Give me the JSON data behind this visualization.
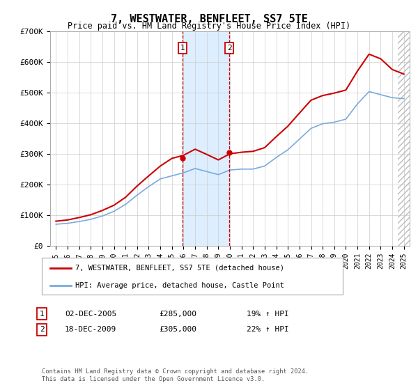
{
  "title": "7, WESTWATER, BENFLEET, SS7 5TE",
  "subtitle": "Price paid vs. HM Land Registry's House Price Index (HPI)",
  "legend_line1": "7, WESTWATER, BENFLEET, SS7 5TE (detached house)",
  "legend_line2": "HPI: Average price, detached house, Castle Point",
  "annotation1_date": "02-DEC-2005",
  "annotation1_price": "£285,000",
  "annotation1_hpi": "19% ↑ HPI",
  "annotation1_year": 2005.92,
  "annotation1_value": 285000,
  "annotation2_date": "18-DEC-2009",
  "annotation2_price": "£305,000",
  "annotation2_hpi": "22% ↑ HPI",
  "annotation2_year": 2009.96,
  "annotation2_value": 305000,
  "footer": "Contains HM Land Registry data © Crown copyright and database right 2024.\nThis data is licensed under the Open Government Licence v3.0.",
  "red_color": "#cc0000",
  "blue_color": "#7aaadd",
  "shade_color": "#ddeeff",
  "ylim": [
    0,
    700000
  ],
  "xlim_start": 1994.5,
  "xlim_end": 2025.5,
  "years_hpi": [
    1995,
    1996,
    1997,
    1998,
    1999,
    2000,
    2001,
    2002,
    2003,
    2004,
    2005,
    2006,
    2007,
    2008,
    2009,
    2010,
    2011,
    2012,
    2013,
    2014,
    2015,
    2016,
    2017,
    2018,
    2019,
    2020,
    2021,
    2022,
    2023,
    2024,
    2025
  ],
  "hpi_values": [
    70000,
    73000,
    79000,
    86000,
    97000,
    112000,
    135000,
    165000,
    193000,
    218000,
    228000,
    238000,
    252000,
    242000,
    232000,
    247000,
    250000,
    250000,
    260000,
    288000,
    313000,
    348000,
    383000,
    398000,
    403000,
    413000,
    463000,
    503000,
    493000,
    483000,
    480000
  ],
  "red_values": [
    80000,
    84000,
    92000,
    101000,
    115000,
    132000,
    158000,
    195000,
    228000,
    260000,
    285000,
    295000,
    315000,
    298000,
    280000,
    300000,
    305000,
    308000,
    320000,
    356000,
    390000,
    433000,
    475000,
    490000,
    498000,
    508000,
    570000,
    625000,
    610000,
    575000,
    560000
  ]
}
